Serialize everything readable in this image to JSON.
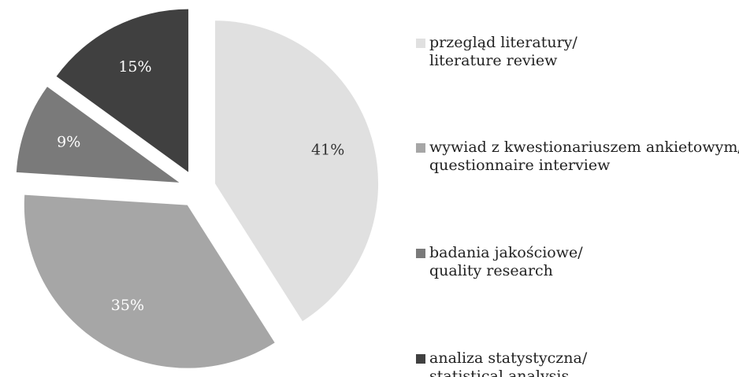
{
  "chart_data": {
    "type": "pie",
    "categories": [
      [
        "przegląd literatury/",
        "literature review"
      ],
      [
        "wywiad z kwestionariuszem ankietowym/",
        "questionnaire interview"
      ],
      [
        "badania jakościowe/",
        "quality research"
      ],
      [
        "analiza statystyczna/",
        "statistical analysis"
      ]
    ],
    "values": [
      41,
      35,
      9,
      15
    ],
    "value_labels": [
      "41%",
      "35%",
      "9%",
      "15%"
    ],
    "colors": [
      "#e0e0e0",
      "#a6a6a6",
      "#7a7a7a",
      "#404040"
    ],
    "legend": "right"
  }
}
